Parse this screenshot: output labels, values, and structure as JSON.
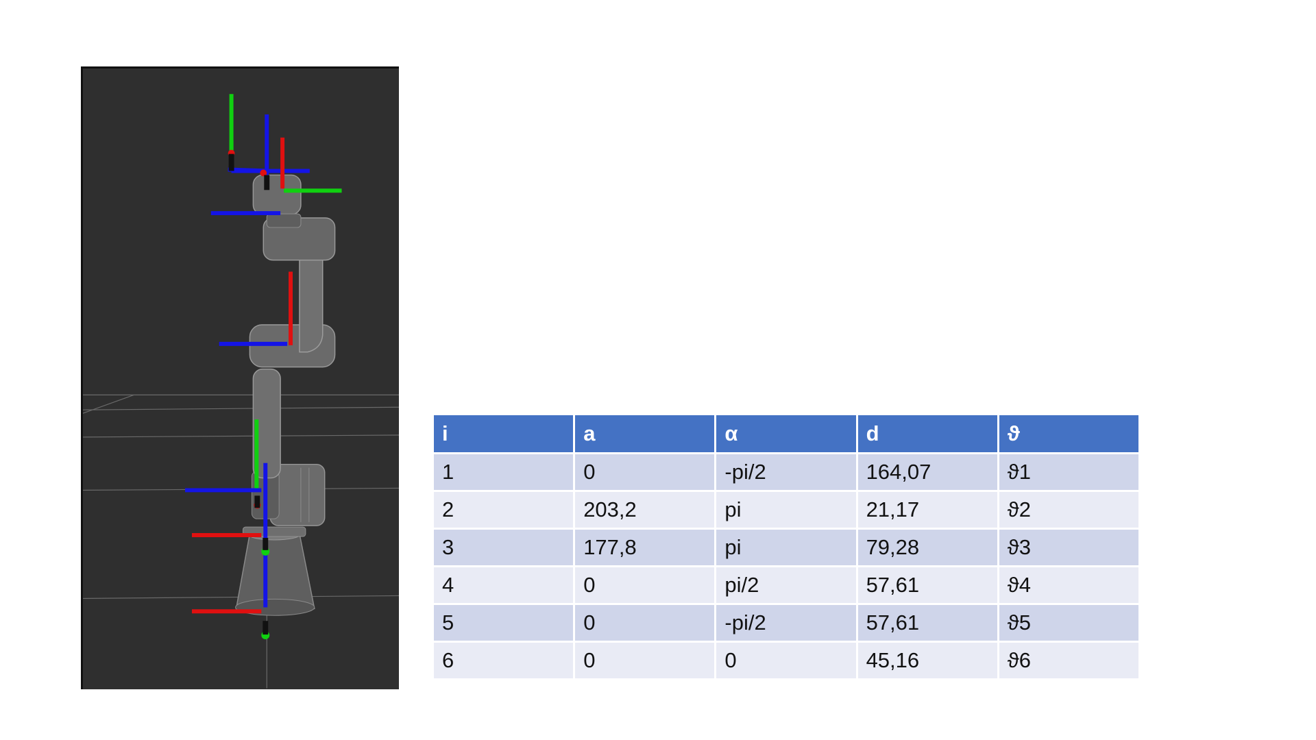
{
  "colors": {
    "viewport_background": "#2f2f2f",
    "table_header": "#4472c4",
    "row_odd": "#cfd5ea",
    "row_even": "#e9ebf5",
    "axis_x": "#e01010",
    "axis_y": "#10d010",
    "axis_z": "#1010e0"
  },
  "viewport": {
    "content": "robot-arm-3d-view-with-joint-frames"
  },
  "table": {
    "headers": [
      "i",
      "a",
      "α",
      "d",
      "ϑ"
    ],
    "rows": [
      [
        "1",
        "0",
        "-pi/2",
        "164,07",
        "ϑ1"
      ],
      [
        "2",
        "203,2",
        "pi",
        "21,17",
        "ϑ2"
      ],
      [
        "3",
        "177,8",
        "pi",
        "79,28",
        "ϑ3"
      ],
      [
        "4",
        "0",
        "pi/2",
        "57,61",
        "ϑ4"
      ],
      [
        "5",
        "0",
        "-pi/2",
        "57,61",
        "ϑ5"
      ],
      [
        "6",
        "0",
        "0",
        "45,16",
        "ϑ6"
      ]
    ]
  }
}
